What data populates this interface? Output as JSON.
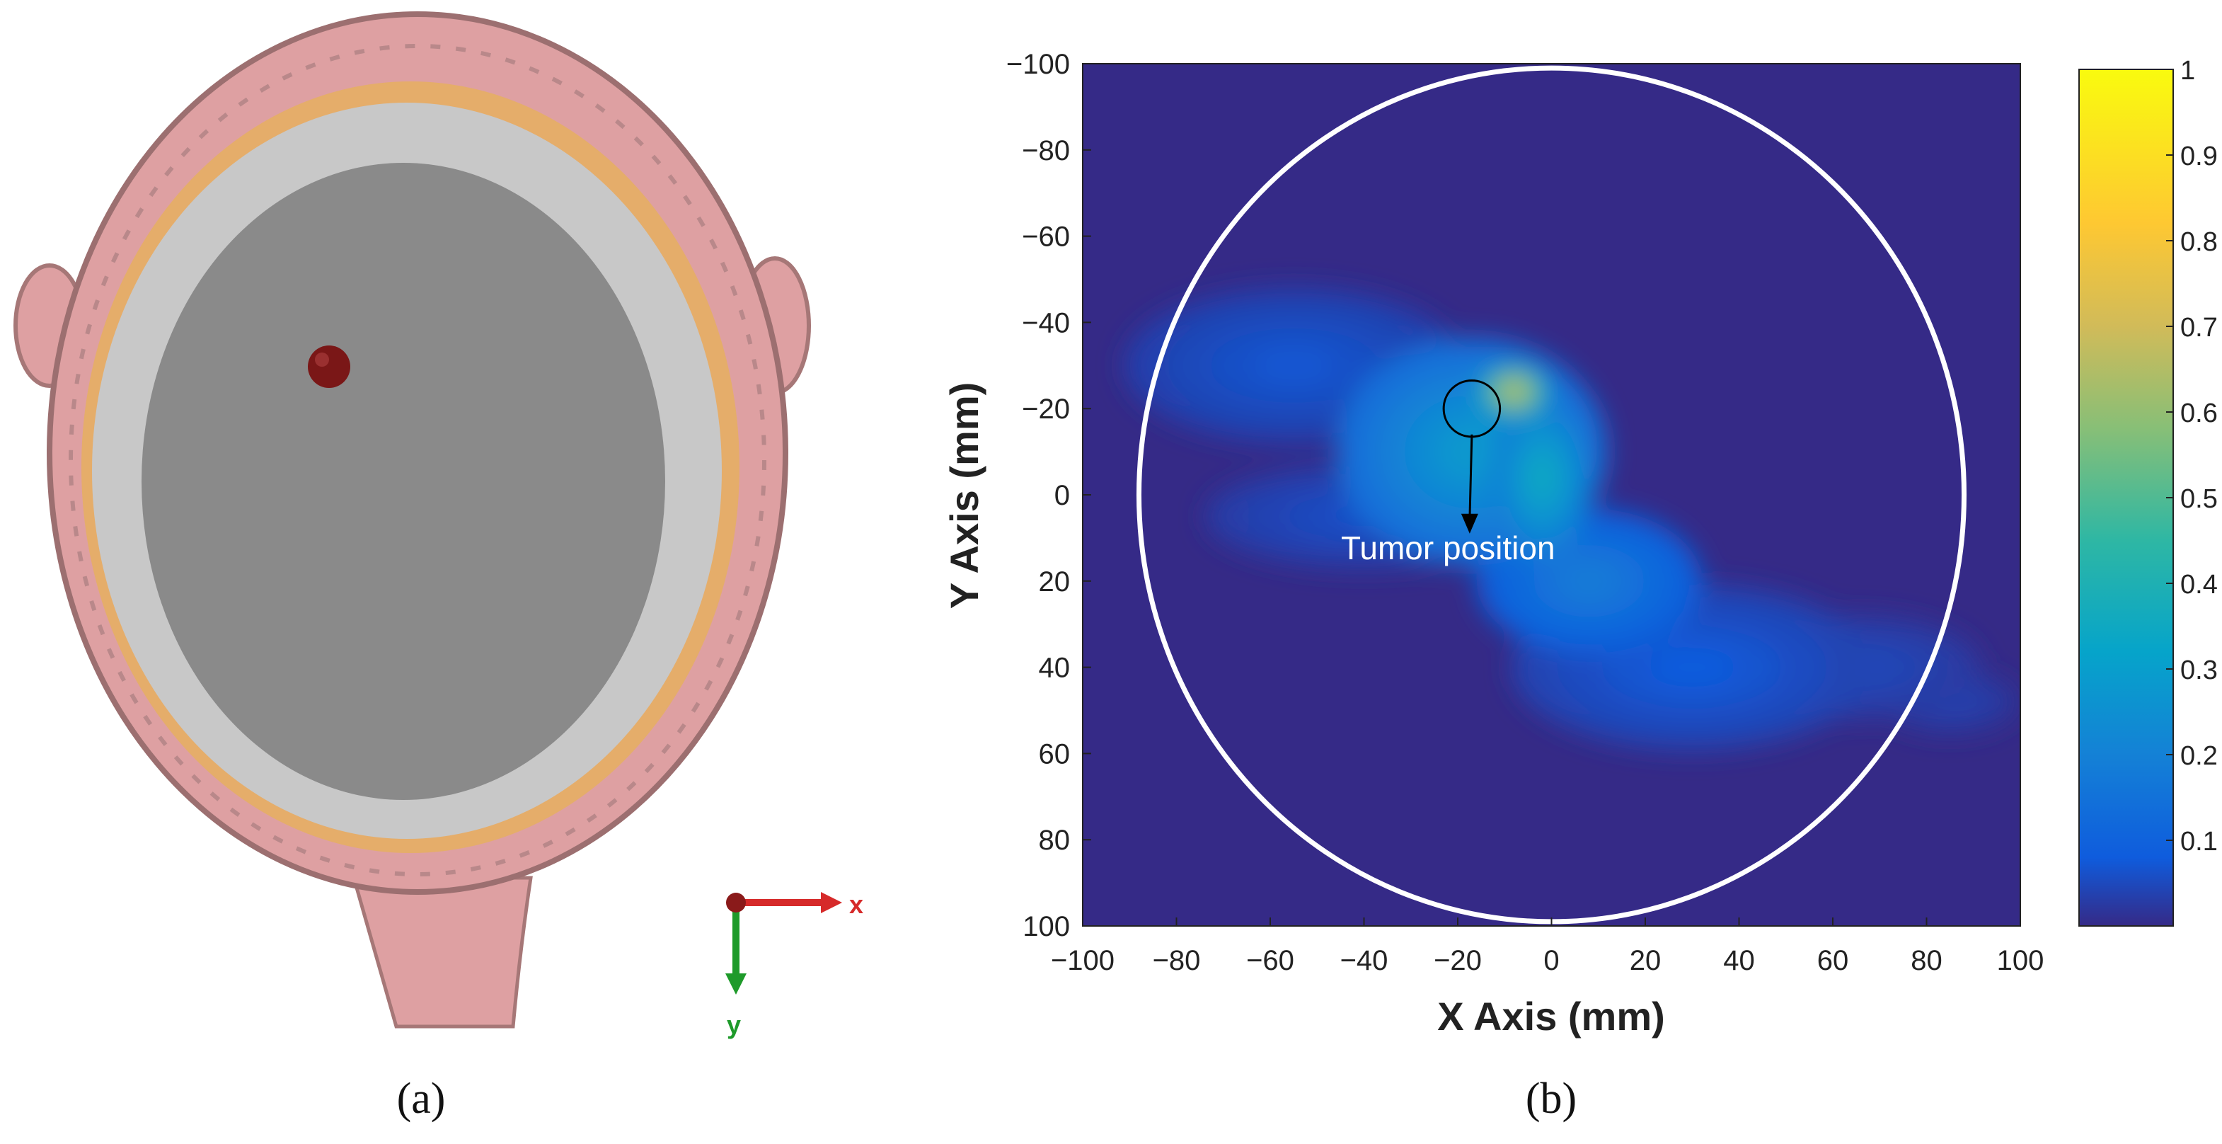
{
  "panel_a": {
    "caption": "(a)",
    "axes_indicator": {
      "x_label": "x",
      "y_label": "y"
    },
    "colors": {
      "skin": "#dea0a2",
      "skin_dark": "#9c6f70",
      "fat": "#e5ad6a",
      "skull": "#c8c8c8",
      "brain": "#8a8a8a",
      "tumor": "#7a1717",
      "axis_x": "#d62a2a",
      "axis_y": "#1e9a2a"
    }
  },
  "panel_b": {
    "caption": "(b)",
    "annotation": "Tumor position"
  },
  "chart_data": {
    "type": "heatmap",
    "xlabel": "X Axis (mm)",
    "ylabel": "Y Axis (mm)",
    "xlim": [
      -100,
      100
    ],
    "ylim": [
      -100,
      100
    ],
    "y_reversed": true,
    "x_ticks": [
      "−100",
      "−80",
      "−60",
      "−40",
      "−20",
      "0",
      "20",
      "40",
      "60",
      "80",
      "100"
    ],
    "y_ticks": [
      "−100",
      "−80",
      "−60",
      "−40",
      "−20",
      "0",
      "20",
      "40",
      "60",
      "80",
      "100"
    ],
    "colorbar": {
      "range": [
        0,
        1
      ],
      "ticks": [
        "0.1",
        "0.2",
        "0.3",
        "0.4",
        "0.5",
        "0.6",
        "0.7",
        "0.8",
        "0.9",
        "1"
      ],
      "colormap": "parula"
    },
    "background_color": "#352a87",
    "head_outline": {
      "center_x": 0,
      "center_y": 0,
      "radius_x": 88,
      "radius_y": 99,
      "color": "#ffffff"
    },
    "tumor_marker": {
      "x": -17,
      "y": -20,
      "radius": 6
    },
    "hotspots": [
      {
        "x": -8,
        "y": -24,
        "sx": 6,
        "sy": 5,
        "value": 0.72
      },
      {
        "x": -2,
        "y": -4,
        "sx": 9,
        "sy": 16,
        "value": 0.35
      },
      {
        "x": -17,
        "y": -10,
        "sx": 24,
        "sy": 22,
        "value": 0.28
      },
      {
        "x": 8,
        "y": 20,
        "sx": 20,
        "sy": 14,
        "value": 0.18
      },
      {
        "x": 30,
        "y": 40,
        "sx": 32,
        "sy": 16,
        "value": 0.08
      },
      {
        "x": -55,
        "y": -30,
        "sx": 30,
        "sy": 15,
        "value": 0.07
      },
      {
        "x": -40,
        "y": 5,
        "sx": 28,
        "sy": 10,
        "value": 0.06
      },
      {
        "x": 65,
        "y": 40,
        "sx": 22,
        "sy": 10,
        "value": 0.05
      },
      {
        "x": 85,
        "y": 48,
        "sx": 12,
        "sy": 6,
        "value": 0.04
      }
    ]
  }
}
